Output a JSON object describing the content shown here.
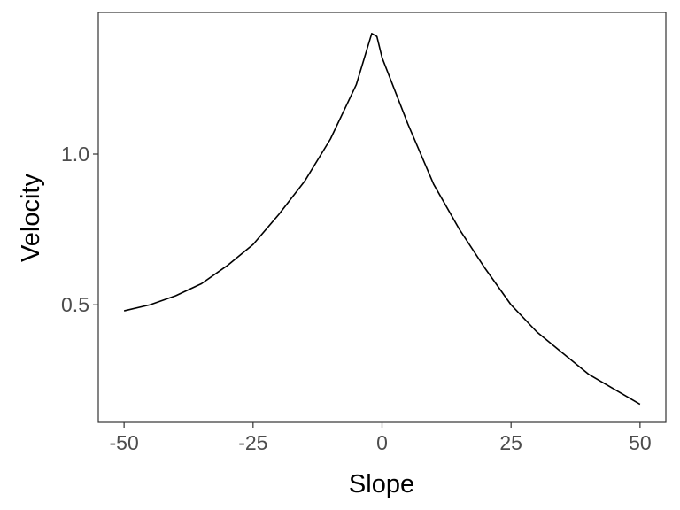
{
  "chart_data": {
    "type": "line",
    "title": "",
    "xlabel": "Slope",
    "ylabel": "Velocity",
    "xlim": [
      -55,
      55
    ],
    "ylim": [
      0.11,
      1.47
    ],
    "x_ticks": [
      -50,
      -25,
      0,
      25,
      50
    ],
    "x_tick_labels": [
      "-50",
      "-25",
      "0",
      "25",
      "50"
    ],
    "y_ticks": [
      0.5,
      1.0
    ],
    "y_tick_labels": [
      "0.5",
      "1.0"
    ],
    "grid": false,
    "legend": "none",
    "series": [
      {
        "color": "#000000",
        "x": [
          -50,
          -45,
          -40,
          -35,
          -30,
          -25,
          -20,
          -15,
          -10,
          -5,
          -2,
          -1,
          0,
          5,
          10,
          15,
          20,
          25,
          30,
          35,
          40,
          45,
          50
        ],
        "y": [
          0.48,
          0.5,
          0.53,
          0.57,
          0.63,
          0.7,
          0.8,
          0.91,
          1.05,
          1.23,
          1.4,
          1.39,
          1.32,
          1.1,
          0.9,
          0.75,
          0.62,
          0.5,
          0.41,
          0.34,
          0.27,
          0.22,
          0.17
        ]
      }
    ]
  }
}
